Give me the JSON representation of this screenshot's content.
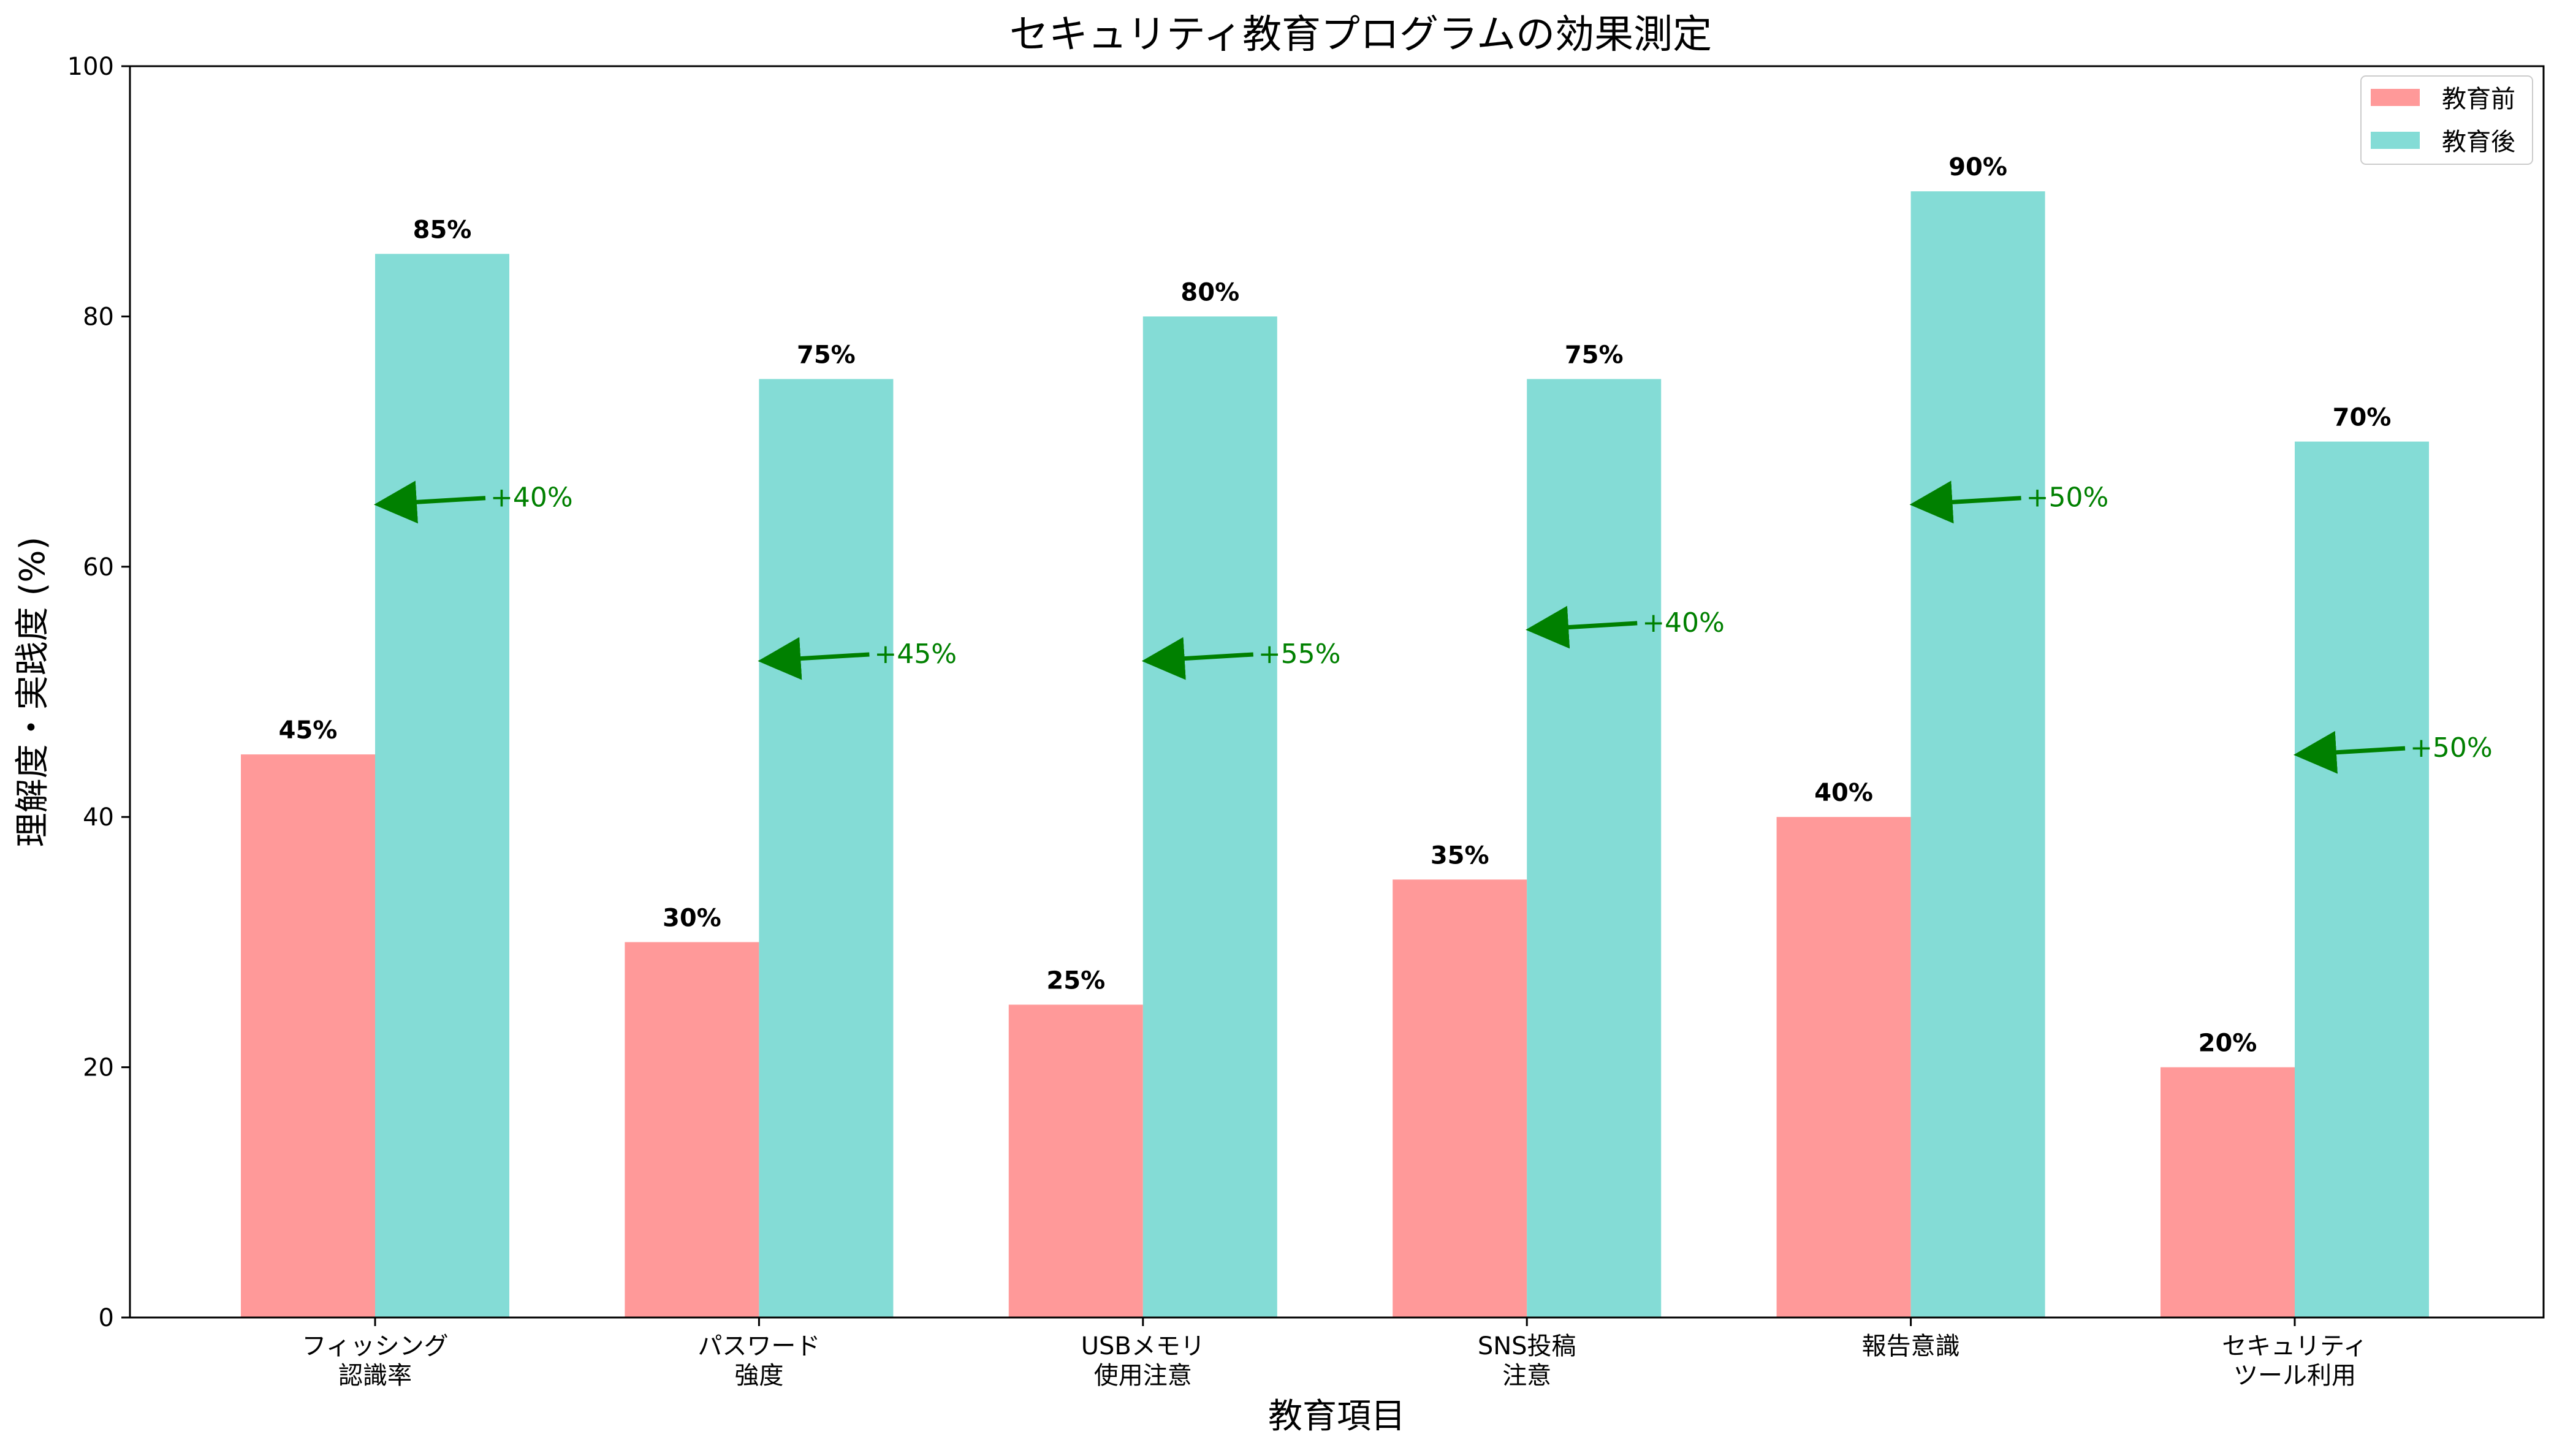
{
  "chart_data": {
    "type": "bar",
    "title": "セキュリティ教育プログラムの効果測定",
    "xlabel": "教育項目",
    "ylabel": "理解度・実践度 (%)",
    "ylim": [
      0,
      100
    ],
    "yticks": [
      0,
      20,
      40,
      60,
      80,
      100
    ],
    "categories": [
      [
        "フィッシング",
        "認識率"
      ],
      [
        "パスワード",
        "強度"
      ],
      [
        "USBメモリ",
        "使用注意"
      ],
      [
        "SNS投稿",
        "注意"
      ],
      [
        "報告意識"
      ],
      [
        "セキュリティ",
        "ツール利用"
      ]
    ],
    "series": [
      {
        "name": "教育前",
        "color": "#ff9999",
        "values": [
          45,
          30,
          25,
          35,
          40,
          20
        ]
      },
      {
        "name": "教育後",
        "color": "#84dcd6",
        "values": [
          85,
          75,
          80,
          75,
          90,
          70
        ]
      }
    ],
    "value_suffix": "%",
    "annotations": [
      {
        "text": "+40%",
        "target_y": 65
      },
      {
        "text": "+45%",
        "target_y": 52.5
      },
      {
        "text": "+55%",
        "target_y": 52.5
      },
      {
        "text": "+40%",
        "target_y": 55
      },
      {
        "text": "+50%",
        "target_y": 65
      },
      {
        "text": "+50%",
        "target_y": 45
      }
    ],
    "annotation_color": "#008000",
    "legend_position": "top-right",
    "grid": false
  }
}
